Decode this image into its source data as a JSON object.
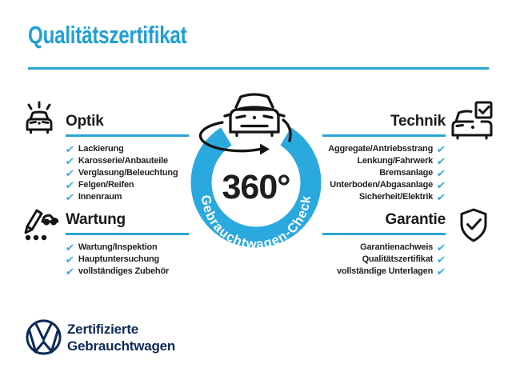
{
  "page": {
    "title": "Qualitätszertifikat"
  },
  "center": {
    "value": "360°",
    "ring_label": "Gebrauchtwagen-Check",
    "car_icon": "car-rotation-icon"
  },
  "sections": [
    {
      "id": "optik",
      "title": "Optik",
      "icon": "car-shine-icon",
      "side": "left",
      "items": [
        "Lackierung",
        "Karosserie/Anbauteile",
        "Verglasung/Beleuchtung",
        "Felgen/Reifen",
        "Innenraum"
      ]
    },
    {
      "id": "technik",
      "title": "Technik",
      "icon": "car-checkbox-icon",
      "side": "right",
      "items": [
        "Aggregate/Antriebsstrang",
        "Lenkung/Fahrwerk",
        "Bremsanlage",
        "Unterboden/Abgasanlage",
        "Sicherheit/Elektrik"
      ]
    },
    {
      "id": "wartung",
      "title": "Wartung",
      "icon": "service-checklist-icon",
      "side": "left",
      "items": [
        "Wartung/Inspektion",
        "Hauptuntersuchung",
        "vollständiges Zubehör"
      ]
    },
    {
      "id": "garantie",
      "title": "Garantie",
      "icon": "shield-check-icon",
      "side": "right",
      "items": [
        "Garantienachweis",
        "Qualitätszertifikat",
        "vollständige Unterlagen"
      ]
    }
  ],
  "footer": {
    "logo": "vw-logo",
    "line1": "Zertifizierte",
    "line2": "Gebrauchtwagen"
  },
  "colors": {
    "accent": "#1f9fd8",
    "ring": "#2aa9de",
    "ink": "#1d1d1b",
    "navy": "#0e2a57"
  },
  "check_glyph": "✔"
}
